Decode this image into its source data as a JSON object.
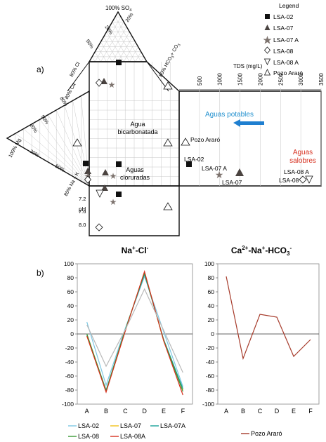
{
  "panel_a": {
    "panel_label": "a)",
    "legend": {
      "title": "Legend",
      "items": [
        {
          "label": "LSA-02",
          "marker": "filled-square"
        },
        {
          "label": "LSA-07",
          "marker": "filled-triangle"
        },
        {
          "label": "LSA-07 A",
          "marker": "star"
        },
        {
          "label": "LSA-08",
          "marker": "open-diamond"
        },
        {
          "label": "LSA-08 A",
          "marker": "open-down-triangle"
        },
        {
          "label": "Pozo Araró",
          "marker": "open-triangle"
        }
      ]
    },
    "piper_labels": {
      "so4": "100% SO",
      "so4_sub": "4",
      "mg": "100% Mg",
      "cl_ax": "80% Cl",
      "hco3_ax": "80% HCO",
      "hco3_sub": "3",
      "co3": "+ CO",
      "co3_sub": "3",
      "na_k": "80% Na + K",
      "ca": "80% Ca",
      "tick_20": "20%",
      "tick_50": "50%",
      "tick_80": "80%"
    },
    "tds": {
      "label": "TDS (mg/L)",
      "ticks": [
        "500",
        "1000",
        "1500",
        "2000",
        "2500",
        "3000",
        "3500"
      ]
    },
    "ph": {
      "label": "pH",
      "ticks": [
        "7.2",
        "7.6",
        "8.0"
      ]
    },
    "annotations": {
      "aguas_potables": "Aguas potables",
      "agua_bicarbonatada_1": "Agua",
      "agua_bicarbonatada_2": "bicarbonatada",
      "aguas_cloruradas_1": "Aguas",
      "aguas_cloruradas_2": "cloruradas",
      "aguas_salobres_1": "Aguas",
      "aguas_salobres_2": "salobres",
      "pozo_arao": "Pozo Araró",
      "lsa02": "LSA-02",
      "lsa07a": "LSA-07 A",
      "lsa07": "LSA-07",
      "lsa08a": "LSA-08 A",
      "lsa08": "LSA-08"
    },
    "colors": {
      "potables": "#1f8fce",
      "salobres": "#d7301f",
      "star": "#7d736e",
      "triangle_fill": "#4a4340"
    }
  },
  "panel_b": {
    "panel_label": "b)",
    "chart_data": [
      {
        "type": "line",
        "title": "Na+-Cl-",
        "title_parts": {
          "a": "Na",
          "a_sup": "+",
          "b": "-Cl",
          "b_sup": "-"
        },
        "categories": [
          "A",
          "B",
          "C",
          "D",
          "E",
          "F"
        ],
        "ylim": [
          -100,
          100
        ],
        "yticks": [
          "100",
          "80",
          "60",
          "40",
          "20",
          "0",
          "-20",
          "-40",
          "-60",
          "-80",
          "-100"
        ],
        "series": [
          {
            "name": "LSA-02",
            "color": "#7ec8e3",
            "values": [
              17,
              -73,
              8,
              82,
              3,
              -75
            ]
          },
          {
            "name": "LSA-07",
            "color": "#f2c21b",
            "values": [
              -3,
              -82,
              5,
              88,
              -10,
              -80
            ]
          },
          {
            "name": "LSA-07A",
            "color": "#1aa39a",
            "values": [
              -2,
              -80,
              6,
              85,
              -8,
              -78
            ]
          },
          {
            "name": "LSA-08",
            "color": "#3a9a35",
            "values": [
              0,
              -81,
              6,
              87,
              -9,
              -82
            ]
          },
          {
            "name": "LSA-08A",
            "color": "#d7301f",
            "values": [
              -3,
              -83,
              4,
              89,
              -10,
              -87
            ]
          },
          {
            "name": "",
            "color": "#b8b8b8",
            "values": [
              13,
              -46,
              6,
              64,
              5,
              -55
            ]
          }
        ]
      },
      {
        "type": "line",
        "title": "Ca2+-Na+-HCO3-",
        "title_parts": {
          "a": "Ca",
          "a_sup": "2+",
          "b": "-Na",
          "b_sup": "+",
          "c": "-HCO",
          "c_sub": "3",
          "c_sup": "-"
        },
        "categories": [
          "A",
          "B",
          "C",
          "D",
          "E",
          "F"
        ],
        "ylim": [
          -100,
          100
        ],
        "yticks": [
          "100",
          "80",
          "60",
          "40",
          "20",
          "0",
          "-20",
          "-40",
          "-60",
          "-80",
          "-100"
        ],
        "series": [
          {
            "name": "Pozo Araró",
            "color": "#a63a2a",
            "values": [
              82,
              -35,
              28,
              24,
              -32,
              -8
            ]
          }
        ]
      }
    ],
    "legend_left": [
      "LSA-02",
      "LSA-07",
      "LSA-07A",
      "LSA-08",
      "LSA-08A"
    ],
    "legend_right": "Pozo Araró"
  }
}
